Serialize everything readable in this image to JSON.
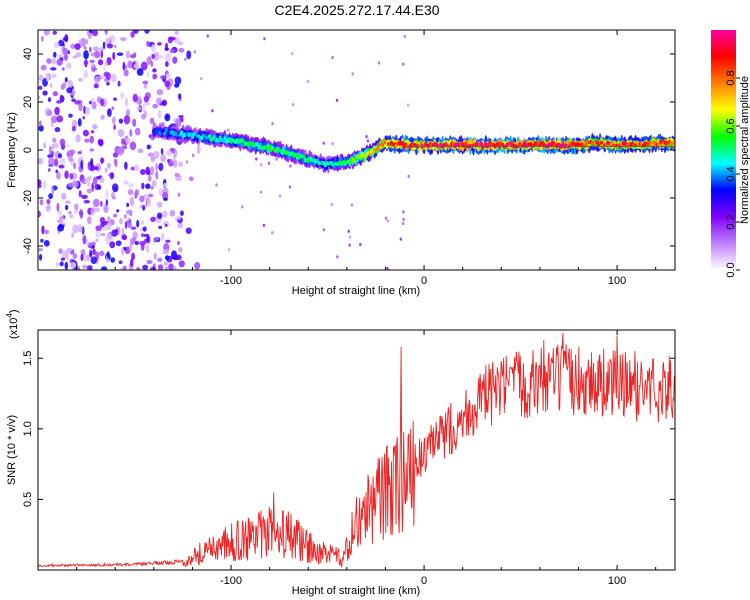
{
  "title": "C2E4.2025.272.17.44.E30",
  "chart_data": [
    {
      "type": "heatmap",
      "name": "spectrogram",
      "xlabel": "Height of straight line (km)",
      "ylabel": "Frequency (Hz)",
      "xlim": [
        -200,
        130
      ],
      "ylim": [
        -50,
        50
      ],
      "xticks": [
        -100,
        0,
        100
      ],
      "yticks": [
        -40,
        -20,
        0,
        20,
        40
      ],
      "xtick_labels": [
        "-100",
        "0",
        "100"
      ],
      "ytick_labels": [
        "-40",
        "-20",
        "0",
        "20",
        "40"
      ],
      "colorbar": {
        "label": "Normalized spectral amplitude",
        "range": [
          0,
          1
        ],
        "ticks": [
          0.0,
          0.2,
          0.4,
          0.6,
          0.8
        ],
        "tick_labels": [
          "0.0",
          "0.2",
          "0.4",
          "0.6",
          "0.8"
        ],
        "colors": [
          "#ffffff",
          "#c080ff",
          "#8000ff",
          "#0000ff",
          "#00ffff",
          "#00ff00",
          "#ffff00",
          "#ff8000",
          "#ff0000",
          "#ff00a0"
        ]
      },
      "ridge": {
        "x": [
          -140,
          -120,
          -100,
          -80,
          -60,
          -50,
          -40,
          -30,
          -20,
          -10,
          0,
          20,
          40,
          60,
          80,
          90,
          100,
          130
        ],
        "freq": [
          8,
          6,
          4,
          1,
          -4,
          -6,
          -5,
          -2,
          3,
          2,
          2,
          2,
          2,
          2,
          2,
          3,
          2,
          3
        ],
        "amplitude": [
          0.35,
          0.45,
          0.5,
          0.55,
          0.5,
          0.45,
          0.55,
          0.7,
          0.8,
          0.9,
          0.9,
          0.95,
          0.95,
          0.95,
          0.95,
          0.85,
          0.9,
          0.85
        ]
      },
      "noise_region_x": [
        -200,
        -125
      ],
      "noise_amplitude_range": [
        0.0,
        0.3
      ]
    },
    {
      "type": "line",
      "name": "snr",
      "xlabel": "Height of straight line (km)",
      "ylabel": "SNR (10 * v/v)",
      "multiplier_label": "(x10",
      "multiplier_exponent": "4",
      "xlim": [
        -200,
        130
      ],
      "ylim": [
        0,
        17000
      ],
      "xticks": [
        -100,
        0,
        100
      ],
      "yticks": [
        5000,
        10000,
        15000
      ],
      "xtick_labels": [
        "-100",
        "0",
        "100"
      ],
      "ytick_labels": [
        "0.5",
        "1.0",
        "1.5"
      ],
      "color": "#ee2222",
      "profile": {
        "x": [
          -200,
          -150,
          -125,
          -110,
          -95,
          -80,
          -70,
          -55,
          -42,
          -38,
          -32,
          -25,
          -15,
          -5,
          5,
          15,
          25,
          35,
          50,
          70,
          90,
          110,
          130
        ],
        "y": [
          300,
          400,
          600,
          1500,
          2000,
          2500,
          2400,
          1200,
          800,
          2500,
          3800,
          4800,
          6000,
          7500,
          8800,
          10200,
          11500,
          12500,
          13200,
          13500,
          13300,
          13000,
          12800
        ]
      },
      "spikes": [
        {
          "x": -12,
          "y": 15800
        },
        {
          "x": -78,
          "y": 5500
        },
        {
          "x": 62,
          "y": 16300
        },
        {
          "x": 72,
          "y": 16800
        },
        {
          "x": 100,
          "y": 16600
        }
      ],
      "noise_scale": 0.16
    }
  ]
}
